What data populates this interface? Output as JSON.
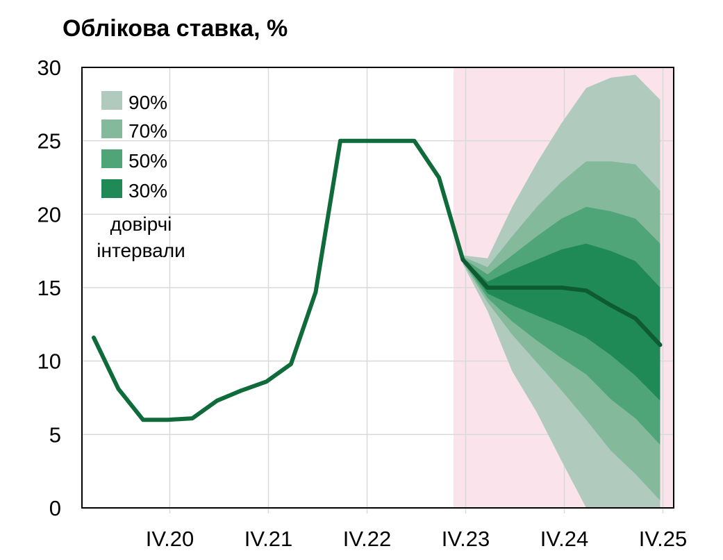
{
  "chart_data": {
    "type": "area",
    "title": "Облікова ставка, %",
    "xlabel": "",
    "ylabel": "",
    "ylim": [
      0,
      30
    ],
    "y_ticks": [
      0,
      5,
      10,
      15,
      20,
      25,
      30
    ],
    "x_tick_labels": [
      "IV.20",
      "IV.21",
      "IV.22",
      "IV.23",
      "IV.24",
      "IV.25"
    ],
    "grid": true,
    "forecast_shading_color": "#fbe3ec",
    "line_color": "#0f6b3a",
    "legend_position": "top-left",
    "legend_note": [
      "довірчі",
      "інтервали"
    ],
    "bands": [
      {
        "name": "90%",
        "color": "#b0cbbd"
      },
      {
        "name": "70%",
        "color": "#84b99c"
      },
      {
        "name": "50%",
        "color": "#4fa478"
      },
      {
        "name": "30%",
        "color": "#1f8a55"
      }
    ],
    "historical_series": {
      "x": [
        "I.20",
        "II.20",
        "III.20",
        "IV.20",
        "I.21",
        "II.21",
        "III.21",
        "IV.21",
        "I.22",
        "II.22",
        "III.22",
        "IV.22",
        "I.23",
        "II.23",
        "III.23"
      ],
      "values": [
        11.6,
        8.1,
        6.0,
        6.0,
        6.1,
        7.3,
        8.0,
        8.6,
        9.8,
        14.7,
        25.0,
        25.0,
        25.0,
        25.0,
        22.5
      ]
    },
    "forecast": {
      "x": [
        "IV.23",
        "I.24",
        "II.24",
        "III.24",
        "IV.24",
        "I.25",
        "II.25",
        "III.25",
        "IV.25"
      ],
      "median": [
        16.9,
        15.0,
        15.0,
        15.0,
        15.0,
        14.8,
        13.8,
        12.9,
        11.1
      ],
      "band_90_upper": [
        17.2,
        17.0,
        20.5,
        23.5,
        26.2,
        28.6,
        29.3,
        29.5,
        27.8
      ],
      "band_70_upper": [
        17.1,
        16.4,
        18.5,
        20.5,
        22.2,
        23.6,
        23.6,
        23.4,
        21.6
      ],
      "band_50_upper": [
        17.0,
        15.9,
        17.2,
        18.5,
        19.7,
        20.5,
        20.2,
        19.7,
        18.0
      ],
      "band_30_upper": [
        16.95,
        15.4,
        16.2,
        16.9,
        17.6,
        18.0,
        17.5,
        16.8,
        15.0
      ],
      "band_30_lower": [
        16.85,
        14.6,
        13.8,
        13.1,
        12.4,
        11.6,
        10.4,
        9.0,
        7.3
      ],
      "band_50_lower": [
        16.8,
        14.3,
        12.7,
        11.4,
        10.2,
        9.1,
        7.4,
        6.1,
        4.3
      ],
      "band_70_lower": [
        16.7,
        14.0,
        11.8,
        9.9,
        8.0,
        6.0,
        3.9,
        2.3,
        0.5
      ],
      "band_90_lower": [
        16.6,
        13.4,
        9.3,
        6.5,
        3.2,
        0.0,
        0.0,
        0.0,
        0.0
      ]
    }
  }
}
